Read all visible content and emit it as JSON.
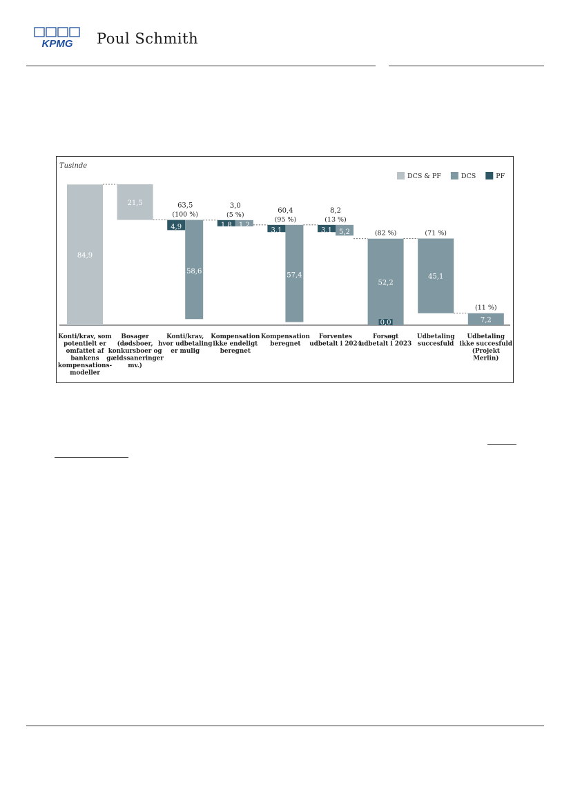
{
  "header": {
    "brand": "Poul Schmith",
    "logo_text": "KPMG"
  },
  "colors": {
    "dcs_pf": "#b9c3c7",
    "dcs": "#8098a1",
    "pf": "#2e5765",
    "kpmg_blue": "#1e4fa0"
  },
  "chart_data": {
    "type": "bar",
    "subtype": "waterfall",
    "unit_label": "Tusinde",
    "legend": {
      "placement": "top-right",
      "items": [
        {
          "key": "dcs_pf",
          "label": "DCS & PF"
        },
        {
          "key": "dcs",
          "label": "DCS"
        },
        {
          "key": "pf",
          "label": "PF"
        }
      ]
    },
    "ylim": [
      0,
      90
    ],
    "categories": [
      "Konti/krav, som potentielt er omfattet af bankens kompensations-modeller",
      "Bosager (dødsboer, konkursboer og gældssaneringer mv.)",
      "Konti/krav, hvor udbetaling er mulig",
      "Kompensation ikke endeligt beregnet",
      "Kompensation beregnet",
      "Forventes udbetalt i 2024",
      "Forsøgt udbetalt i 2023",
      "Udbetaling succesfuld",
      "Udbetaling ikke succesfuld (Projekt Merlin)"
    ],
    "category_lines": [
      [
        "Konti/krav, som",
        "potentielt er",
        "omfattet af",
        "bankens",
        "kompensations-",
        "modeller"
      ],
      [
        "Bosager",
        "(dødsboer,",
        "konkursboer og",
        "gældssaneringer",
        "mv.)"
      ],
      [
        "Konti/krav,",
        "hvor udbetaling",
        "er mulig"
      ],
      [
        "Kompensation",
        "ikke endeligt",
        "beregnet"
      ],
      [
        "Kompensation",
        "beregnet"
      ],
      [
        "Forventes",
        "udbetalt i 2024"
      ],
      [
        "Forsøgt",
        "udbetalt i 2023"
      ],
      [
        "Udbetaling",
        "succesfuld"
      ],
      [
        "Udbetaling",
        "ikke succesfuld",
        "(Projekt",
        "Merlin)"
      ]
    ],
    "bars": [
      {
        "segments": [
          {
            "series": "dcs_pf",
            "base": 0,
            "value": 84.9,
            "label": "84,9"
          }
        ]
      },
      {
        "segments": [
          {
            "series": "dcs_pf",
            "base": 63.5,
            "value": 21.5,
            "label": "21,5"
          }
        ]
      },
      {
        "total": "63,5",
        "pct": "(100 %)",
        "segments": [
          {
            "series": "pf",
            "base": 0,
            "value": 4.9,
            "label": "4,9"
          },
          {
            "series": "dcs",
            "base": 4.9,
            "value": 58.6,
            "label": "58,6"
          }
        ]
      },
      {
        "total": "3,0",
        "pct": "(5 %)",
        "segments": [
          {
            "series": "pf",
            "base": 60.4,
            "value": 1.8,
            "label": "1,8"
          },
          {
            "series": "dcs",
            "base": 62.2,
            "value": 1.2,
            "label": "1,2"
          }
        ]
      },
      {
        "total": "60,4",
        "pct": "(95 %)",
        "segments": [
          {
            "series": "pf",
            "base": 0,
            "value": 3.1,
            "label": "3,1"
          },
          {
            "series": "dcs",
            "base": 3.1,
            "value": 57.4,
            "label": "57,4"
          }
        ]
      },
      {
        "total": "8,2",
        "pct": "(13 %)",
        "segments": [
          {
            "series": "pf",
            "base": 52.2,
            "value": 3.1,
            "label": "3,1"
          },
          {
            "series": "dcs",
            "base": 55.3,
            "value": 5.2,
            "label": "5,2"
          }
        ]
      },
      {
        "pct": "(82 %)",
        "segments": [
          {
            "series": "dcs",
            "base": 0,
            "value": 52.2,
            "label": "52,2"
          },
          {
            "series": "pf",
            "base": 0,
            "value": 0.0,
            "label": "0,0"
          }
        ]
      },
      {
        "pct": "(71 %)",
        "segments": [
          {
            "series": "dcs",
            "base": 7.2,
            "value": 45.1,
            "label": "45,1"
          }
        ]
      },
      {
        "pct": "(11 %)",
        "segments": [
          {
            "series": "dcs",
            "base": 0,
            "value": 7.2,
            "label": "7,2"
          }
        ]
      }
    ]
  }
}
